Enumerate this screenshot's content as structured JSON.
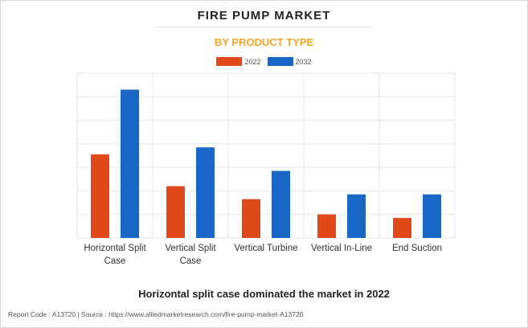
{
  "header": {
    "title": "FIRE PUMP MARKET",
    "subtitle": "BY PRODUCT TYPE"
  },
  "colors": {
    "series_2022": "#e04a1a",
    "series_2032": "#1a66c7",
    "subtitle": "#f5a623",
    "grid": "#e6e6e6"
  },
  "chart_data": {
    "type": "bar",
    "title": "FIRE PUMP MARKET",
    "subtitle": "BY PRODUCT TYPE",
    "categories": [
      "Horizontal Split Case",
      "Vertical Split Case",
      "Vertical Turbine",
      "Vertical In-Line",
      "End Suction"
    ],
    "category_lines": [
      [
        "Horizontal Split",
        "Case"
      ],
      [
        "Vertical Split",
        "Case"
      ],
      [
        "Vertical Turbine"
      ],
      [
        "Vertical In-Line"
      ],
      [
        "End Suction"
      ]
    ],
    "series": [
      {
        "name": "2022",
        "color": "#e04a1a",
        "values": [
          3.55,
          2.2,
          1.65,
          1.0,
          0.85
        ]
      },
      {
        "name": "2032",
        "color": "#1a66c7",
        "values": [
          6.3,
          3.85,
          2.85,
          1.85,
          1.85
        ]
      }
    ],
    "ylim": [
      0,
      7
    ],
    "y_gridlines": 7,
    "y_tick_labels_shown": false,
    "grid": true,
    "legend_position": "top-center",
    "xlabel": "",
    "ylabel": ""
  },
  "caption": "Horizontal split case dominated the market in 2022",
  "footer": "Report Code : A13720  |  Source : https://www.alliedmarketresearch.com/fire-pump-market-A13720"
}
